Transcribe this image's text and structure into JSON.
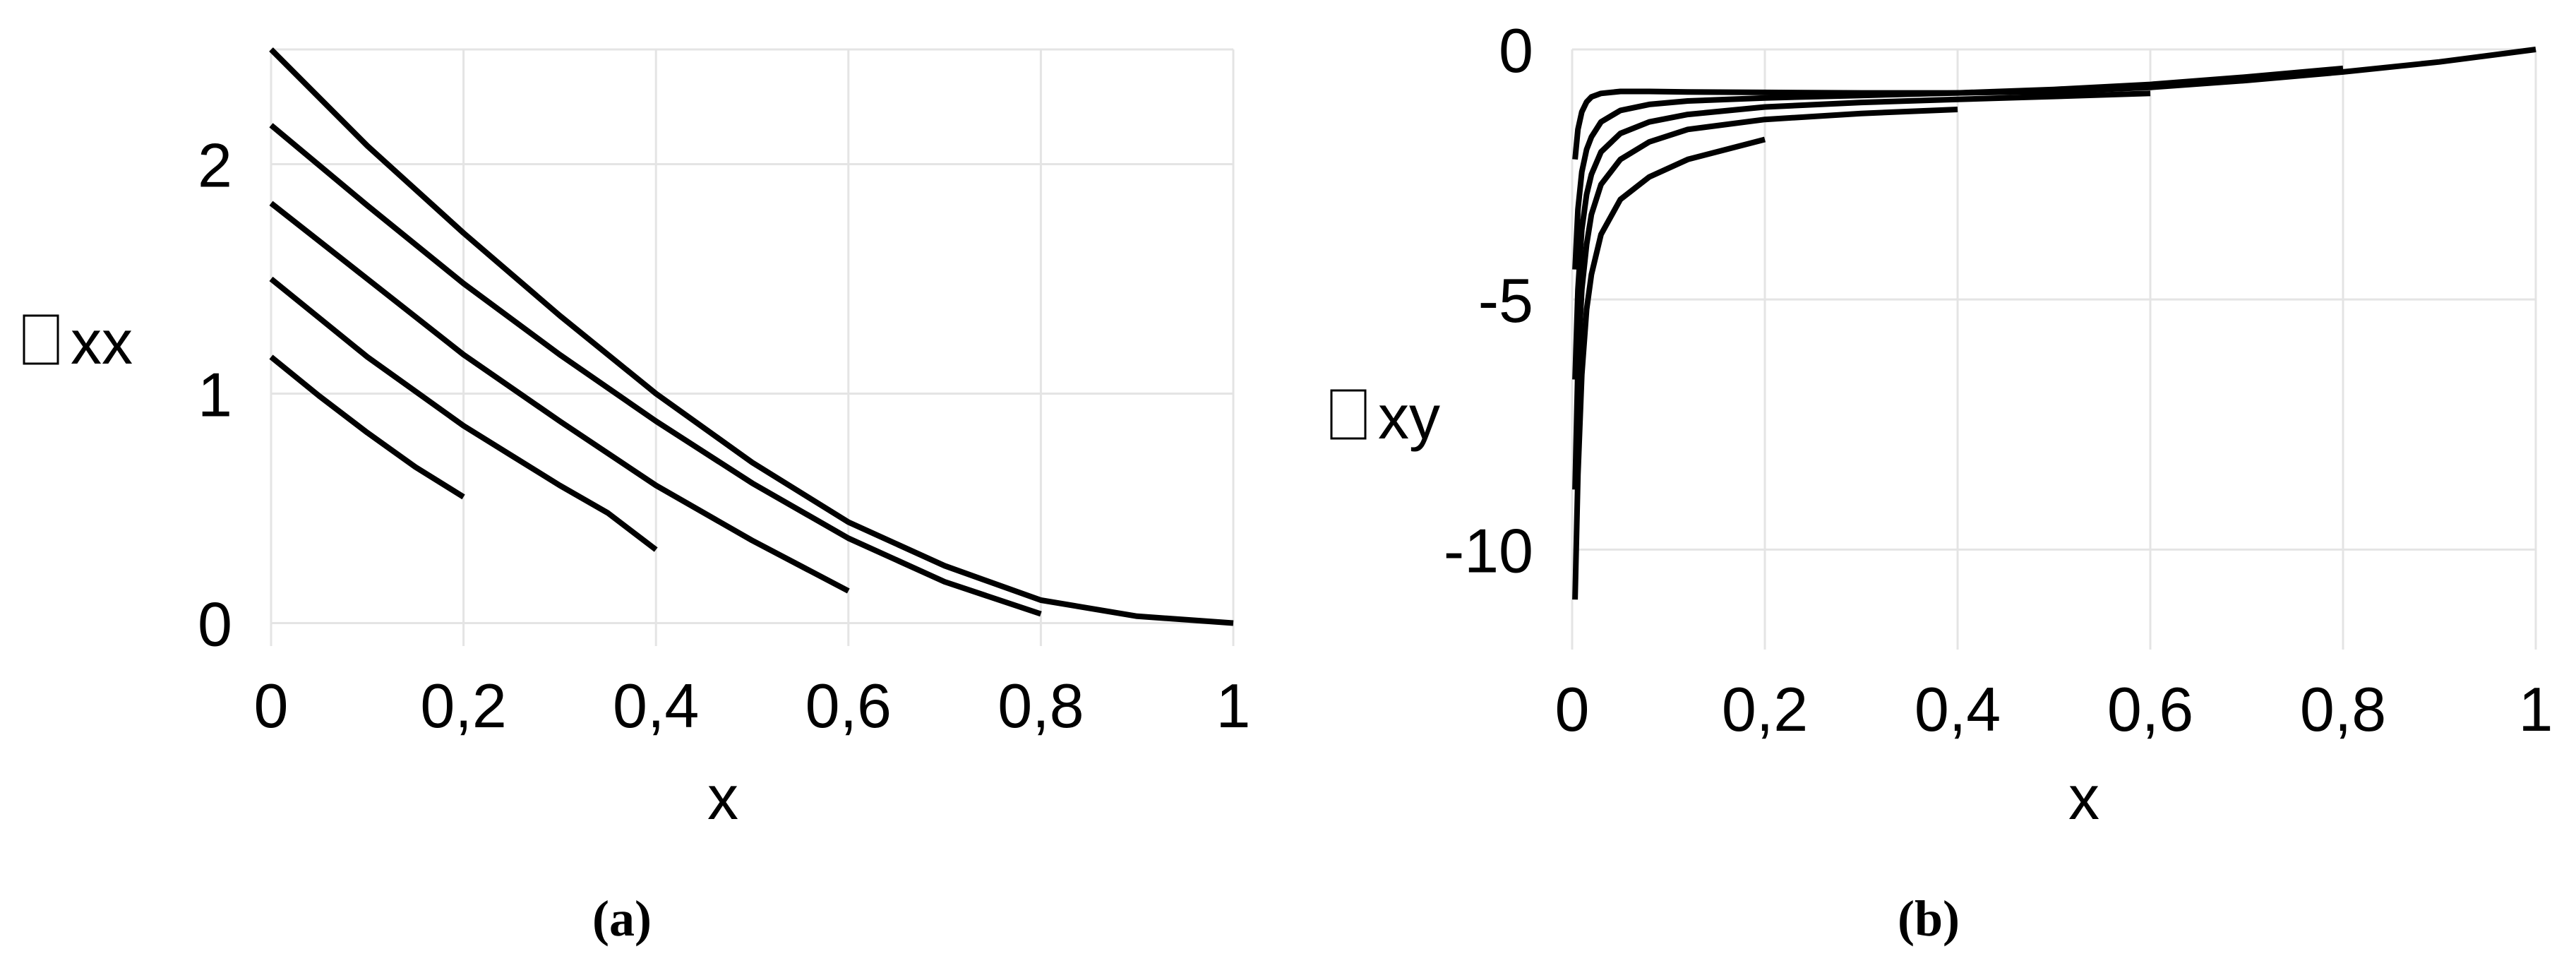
{
  "chart_data": [
    {
      "type": "line",
      "caption": "(a)",
      "xlabel": "x",
      "ylabel": "xx",
      "ylabel_prefix_glyph": "unrendered-glyph-box",
      "xlim": [
        0,
        1
      ],
      "ylim": [
        -0.1,
        2.5
      ],
      "xticks": [
        "0",
        "0,2",
        "0,4",
        "0,6",
        "0,8",
        "1"
      ],
      "yticks": [
        "0",
        "1",
        "2"
      ],
      "xtick_values": [
        0,
        0.2,
        0.4,
        0.6,
        0.8,
        1
      ],
      "ytick_values": [
        0,
        1,
        2
      ],
      "grid": true,
      "series": [
        {
          "x": [
            0,
            0.05,
            0.1,
            0.15,
            0.2
          ],
          "y": [
            1.16,
            0.99,
            0.83,
            0.68,
            0.55
          ]
        },
        {
          "x": [
            0,
            0.05,
            0.1,
            0.15,
            0.2,
            0.25,
            0.3,
            0.35,
            0.4
          ],
          "y": [
            1.5,
            1.33,
            1.16,
            1.01,
            0.86,
            0.73,
            0.6,
            0.48,
            0.32
          ]
        },
        {
          "x": [
            0,
            0.1,
            0.2,
            0.3,
            0.4,
            0.5,
            0.6
          ],
          "y": [
            1.83,
            1.5,
            1.17,
            0.88,
            0.6,
            0.36,
            0.14
          ]
        },
        {
          "x": [
            0,
            0.1,
            0.2,
            0.3,
            0.4,
            0.5,
            0.6,
            0.7,
            0.8
          ],
          "y": [
            2.17,
            1.82,
            1.48,
            1.17,
            0.88,
            0.61,
            0.37,
            0.18,
            0.04
          ]
        },
        {
          "x": [
            0,
            0.1,
            0.2,
            0.3,
            0.4,
            0.5,
            0.6,
            0.7,
            0.8,
            0.9,
            1.0
          ],
          "y": [
            2.5,
            2.08,
            1.7,
            1.34,
            1.0,
            0.7,
            0.44,
            0.25,
            0.1,
            0.03,
            0.0
          ]
        }
      ]
    },
    {
      "type": "line",
      "caption": "(b)",
      "xlabel": "x",
      "ylabel": "xy",
      "ylabel_prefix_glyph": "unrendered-glyph-box",
      "xlim": [
        0,
        1
      ],
      "ylim": [
        -12,
        0
      ],
      "xticks": [
        "0",
        "0,2",
        "0,4",
        "0,6",
        "0,8",
        "1"
      ],
      "yticks": [
        "0",
        "-5",
        "-10"
      ],
      "xtick_values": [
        0,
        0.2,
        0.4,
        0.6,
        0.8,
        1
      ],
      "ytick_values": [
        0,
        -5,
        -10
      ],
      "grid": true,
      "series": [
        {
          "x": [
            0.003,
            0.006,
            0.01,
            0.015,
            0.02,
            0.03,
            0.05,
            0.08,
            0.12,
            0.2
          ],
          "y": [
            -11.0,
            -8.5,
            -6.5,
            -5.2,
            -4.5,
            -3.7,
            -3.0,
            -2.55,
            -2.2,
            -1.8
          ]
        },
        {
          "x": [
            0.003,
            0.006,
            0.01,
            0.015,
            0.02,
            0.03,
            0.05,
            0.08,
            0.12,
            0.2,
            0.3,
            0.4
          ],
          "y": [
            -8.8,
            -6.3,
            -4.8,
            -3.9,
            -3.3,
            -2.7,
            -2.2,
            -1.85,
            -1.6,
            -1.4,
            -1.28,
            -1.2
          ]
        },
        {
          "x": [
            0.003,
            0.006,
            0.01,
            0.015,
            0.02,
            0.03,
            0.05,
            0.08,
            0.12,
            0.2,
            0.3,
            0.4,
            0.5,
            0.6
          ],
          "y": [
            -6.6,
            -4.8,
            -3.6,
            -2.9,
            -2.5,
            -2.05,
            -1.68,
            -1.45,
            -1.3,
            -1.15,
            -1.06,
            -1.0,
            -0.94,
            -0.88
          ]
        },
        {
          "x": [
            0.003,
            0.006,
            0.01,
            0.015,
            0.02,
            0.03,
            0.05,
            0.08,
            0.12,
            0.2,
            0.3,
            0.4,
            0.5,
            0.6,
            0.7,
            0.8
          ],
          "y": [
            -4.4,
            -3.2,
            -2.45,
            -2.0,
            -1.75,
            -1.45,
            -1.22,
            -1.1,
            -1.03,
            -0.97,
            -0.92,
            -0.87,
            -0.8,
            -0.7,
            -0.55,
            -0.38
          ]
        },
        {
          "x": [
            0.003,
            0.006,
            0.01,
            0.015,
            0.02,
            0.03,
            0.05,
            0.08,
            0.12,
            0.2,
            0.3,
            0.4,
            0.5,
            0.6,
            0.7,
            0.8,
            0.9,
            1.0
          ],
          "y": [
            -2.2,
            -1.6,
            -1.25,
            -1.05,
            -0.95,
            -0.88,
            -0.84,
            -0.84,
            -0.85,
            -0.86,
            -0.87,
            -0.87,
            -0.84,
            -0.76,
            -0.62,
            -0.45,
            -0.25,
            0.0
          ]
        }
      ]
    }
  ]
}
